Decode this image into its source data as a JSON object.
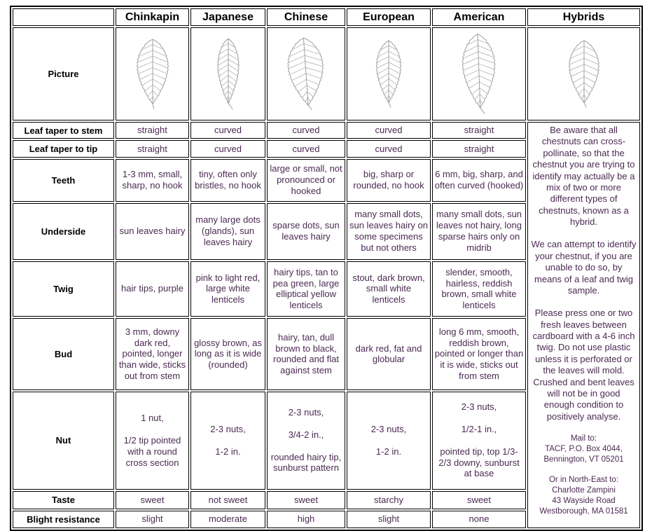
{
  "page": {
    "background": "#ffffff",
    "value_text_color": "#4b2a52",
    "label_text_color": "#000000",
    "border_color": "#000000",
    "leaf_sketch_color": "#9a9a9a"
  },
  "header": {
    "corner_label": "",
    "columns": [
      "Chinkapin",
      "Japanese",
      "Chinese",
      "European",
      "American",
      "Hybrids"
    ]
  },
  "picture_row": {
    "label": "Picture",
    "leaves": [
      {
        "name": "chinkapin-leaf",
        "w": 46,
        "h": 98,
        "veins": 10,
        "stem": 7,
        "bend": 1,
        "rot": 0
      },
      {
        "name": "japanese-leaf",
        "w": 31,
        "h": 98,
        "veins": 11,
        "stem": 9,
        "bend": 4,
        "rot": 0
      },
      {
        "name": "chinese-leaf",
        "w": 52,
        "h": 102,
        "veins": 10,
        "stem": 7,
        "bend": 3,
        "rot": -4
      },
      {
        "name": "european-leaf",
        "w": 36,
        "h": 94,
        "veins": 10,
        "stem": 7,
        "bend": 2,
        "rot": 0
      },
      {
        "name": "american-leaf",
        "w": 48,
        "h": 112,
        "veins": 11,
        "stem": 9,
        "bend": 4,
        "rot": -2
      },
      {
        "name": "hybrids-leaf",
        "w": 44,
        "h": 94,
        "veins": 9,
        "stem": 7,
        "bend": 2,
        "rot": 0
      }
    ]
  },
  "rows": [
    {
      "key": "taper_stem",
      "label": "Leaf taper to stem",
      "values": [
        "straight",
        "curved",
        "curved",
        "curved",
        "straight"
      ]
    },
    {
      "key": "taper_tip",
      "label": "Leaf taper to tip",
      "values": [
        "straight",
        "curved",
        "curved",
        "curved",
        "straight"
      ]
    },
    {
      "key": "teeth",
      "label": "Teeth",
      "values": [
        "1-3 mm, small, sharp, no hook",
        "tiny, often only bristles, no hook",
        "large or small, not pronounced or hooked",
        "big, sharp or rounded, no hook",
        "6 mm, big, sharp, and often curved (hooked)"
      ]
    },
    {
      "key": "underside",
      "label": "Underside",
      "values": [
        "sun leaves hairy",
        "many large dots (glands), sun leaves hairy",
        "sparse dots, sun leaves hairy",
        "many small dots, sun leaves hairy on some specimens but not others",
        "many small dots, sun leaves not hairy, long sparse hairs only on midrib"
      ]
    },
    {
      "key": "twig",
      "label": "Twig",
      "values": [
        "hair tips, purple",
        "pink to light red, large white lenticels",
        "hairy tips, tan to pea green, large elliptical yellow lenticels",
        "stout, dark brown, small white lenticels",
        "slender, smooth, hairless, reddish brown, small white lenticels"
      ]
    },
    {
      "key": "bud",
      "label": "Bud",
      "values": [
        "3 mm, downy dark red, pointed, longer than wide, sticks out from stem",
        "glossy brown, as long as it is wide (rounded)",
        "hairy, tan, dull brown to black, rounded and flat against stem",
        "dark red, fat and globular",
        "long 6 mm, smooth, reddish brown, pointed or longer than it is wide, sticks out from stem"
      ]
    },
    {
      "key": "nut",
      "label": "Nut",
      "values": [
        "1 nut,\n\n1/2 tip pointed with a round cross section",
        "2-3 nuts,\n\n1-2 in.",
        "2-3 nuts,\n\n3/4-2 in.,\n\nrounded hairy tip, sunburst pattern",
        "2-3 nuts,\n\n1-2 in.",
        "2-3 nuts,\n\n1/2-1 in.,\n\npointed tip, top 1/3-2/3 downy, sunburst at base"
      ]
    },
    {
      "key": "taste",
      "label": "Taste",
      "values": [
        "sweet",
        "not sweet",
        "sweet",
        "starchy",
        "sweet"
      ]
    },
    {
      "key": "blight",
      "label": "Blight resistance",
      "values": [
        "slight",
        "moderate",
        "high",
        "slight",
        "none"
      ]
    }
  ],
  "hybrids_note": {
    "p1": "Be aware that all chestnuts can cross-pollinate, so that the chestnut you are trying to identify may actually be a mix of two or more different types of chestnuts, known as a hybrid.",
    "p2": "We can attempt to identify your chestnut, if you are unable to do so, by means of a leaf and twig sample.",
    "p3": "Please press one or two fresh leaves between cardboard with a 4-6 inch twig. Do not use plastic unless it is perforated or the leaves will mold. Crushed and bent leaves will not be in good enough condition to positively analyse.",
    "mail": "Mail to:\nTACF, P.O. Box 4044,\nBennington, VT 05201",
    "alt": "Or in North-East to:\nCharlotte Zampini\n43 Wayside Road\nWestborough, MA 01581"
  }
}
